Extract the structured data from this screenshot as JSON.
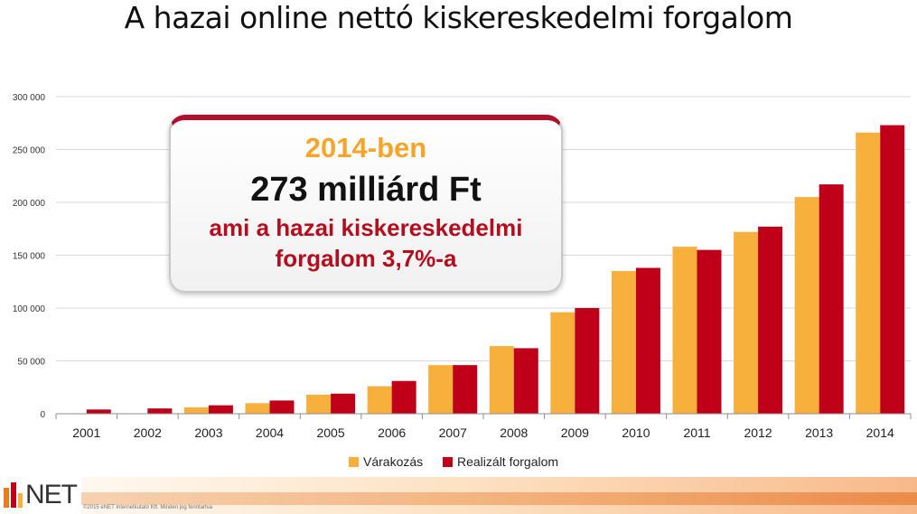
{
  "title": "A hazai online nettó kiskereskedelmi forgalom",
  "callout": {
    "line1": "2014-ben",
    "line2": "273 milliárd Ft",
    "line3": "ami a hazai kiskereskedelmi",
    "line4": "forgalom 3,7%-a"
  },
  "footer": {
    "logo_text": "NET",
    "copyright": "©2015 eNET Internetkutató Kft. Minden jog fenntartva"
  },
  "colors": {
    "expectation": "#f7b03c",
    "realized": "#c00018",
    "grid": "#d9d9d9",
    "axis": "#8c8c8c"
  },
  "chart_data": {
    "type": "bar",
    "categories": [
      "2001",
      "2002",
      "2003",
      "2004",
      "2005",
      "2006",
      "2007",
      "2008",
      "2009",
      "2010",
      "2011",
      "2012",
      "2013",
      "2014"
    ],
    "series": [
      {
        "name": "Várakozás",
        "values": [
          0,
          0,
          6000,
          10000,
          18000,
          26000,
          46000,
          64000,
          96000,
          135000,
          158000,
          172000,
          205000,
          266000
        ]
      },
      {
        "name": "Realizált forgalom",
        "values": [
          4000,
          5000,
          8000,
          12500,
          19000,
          31000,
          46000,
          62000,
          100000,
          138000,
          155000,
          177000,
          217000,
          273000
        ]
      }
    ],
    "ylim": [
      0,
      300000
    ],
    "yticks": [
      0,
      50000,
      100000,
      150000,
      200000,
      250000,
      300000
    ],
    "ytick_labels": [
      "0",
      "50 000",
      "100 000",
      "150 000",
      "200 000",
      "250 000",
      "300 000"
    ],
    "grid": true,
    "legend_position": "bottom"
  }
}
